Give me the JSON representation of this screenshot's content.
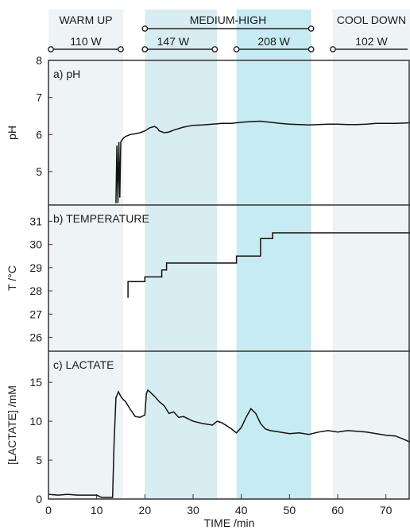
{
  "colors": {
    "warm_up": "#eef4f6",
    "medium_147": "#d8edf2",
    "medium_208": "#c7ebf3",
    "cool_down": "#eef4f6",
    "line": "#111111",
    "frame": "#333333"
  },
  "phases": {
    "warm_up": {
      "label": "WARM UP",
      "power": "110 W",
      "x": [
        0,
        15.5
      ]
    },
    "medium_high": {
      "label": "MEDIUM-HIGH",
      "x": [
        20,
        54.5
      ]
    },
    "p147": {
      "power": "147 W",
      "x": [
        20,
        35
      ]
    },
    "p208": {
      "power": "208 W",
      "x": [
        39,
        54.5
      ]
    },
    "cool_down": {
      "label": "COOL DOWN",
      "power": "102 W",
      "x": [
        59,
        75
      ]
    }
  },
  "chart_data": [
    {
      "type": "line",
      "panel": "a) pH",
      "ylabel": "pH",
      "xlim": [
        0,
        75
      ],
      "ylim": [
        4.1,
        8
      ],
      "yticks": [
        "8",
        "7",
        "6",
        "5"
      ],
      "series": [
        {
          "x": [
            14.0,
            14.2,
            14.4,
            14.6,
            14.8,
            15.0,
            15.5,
            16,
            17,
            18,
            19,
            20,
            21,
            22,
            22.5,
            23,
            24,
            25,
            26,
            28,
            30,
            32,
            34,
            36,
            38,
            40,
            42,
            44,
            46,
            48,
            50,
            52,
            54,
            56,
            58,
            60,
            62,
            64,
            66,
            68,
            70,
            72,
            74,
            75
          ],
          "values": [
            4.15,
            5.7,
            4.15,
            5.8,
            4.3,
            5.8,
            5.9,
            5.95,
            6.0,
            6.02,
            6.05,
            6.1,
            6.18,
            6.22,
            6.18,
            6.1,
            6.05,
            6.07,
            6.12,
            6.2,
            6.25,
            6.26,
            6.28,
            6.3,
            6.3,
            6.33,
            6.35,
            6.36,
            6.33,
            6.3,
            6.28,
            6.27,
            6.26,
            6.27,
            6.28,
            6.28,
            6.27,
            6.27,
            6.28,
            6.3,
            6.3,
            6.3,
            6.31,
            6.32
          ]
        }
      ]
    },
    {
      "type": "line",
      "panel": "b) TEMPERATURE",
      "ylabel": "T /°C",
      "xlim": [
        0,
        75
      ],
      "ylim": [
        25.4,
        31.7
      ],
      "yticks": [
        "31",
        "30",
        "29",
        "28",
        "27",
        "26"
      ],
      "series": [
        {
          "x": [
            16.5,
            16.5,
            17,
            17,
            20,
            20,
            23.5,
            23.5,
            24.5,
            24.5,
            39,
            39,
            42.5,
            42.5,
            44,
            44,
            46.5,
            46.5,
            75
          ],
          "values": [
            27.7,
            28.4,
            28.4,
            28.4,
            28.4,
            28.6,
            28.6,
            28.9,
            28.9,
            29.2,
            29.2,
            29.5,
            29.5,
            29.5,
            29.5,
            30.25,
            30.25,
            30.5,
            30.5
          ]
        }
      ]
    },
    {
      "type": "line",
      "panel": "c) LACTATE",
      "ylabel": "[LACTATE] /mM",
      "xlabel": "TIME /min",
      "xlim": [
        0,
        75
      ],
      "ylim": [
        0,
        19
      ],
      "xticks": [
        "0",
        "10",
        "20",
        "30",
        "40",
        "50",
        "60",
        "70"
      ],
      "yticks": [
        "15",
        "10",
        "5",
        "0"
      ],
      "series": [
        {
          "x": [
            0,
            2,
            4,
            6,
            8,
            10,
            11,
            13.3,
            13.6,
            14.0,
            14.5,
            15,
            15.5,
            16,
            17,
            18,
            19,
            20,
            20.3,
            20.6,
            21,
            22,
            23,
            24,
            25,
            26,
            27,
            28,
            30,
            32,
            34,
            35,
            36,
            38,
            39,
            40,
            41,
            42,
            43,
            44,
            45,
            46,
            48,
            50,
            52,
            54,
            56,
            58,
            60,
            62,
            64,
            66,
            68,
            70,
            72,
            74,
            75
          ],
          "values": [
            0.6,
            0.5,
            0.6,
            0.5,
            0.5,
            0.5,
            0.2,
            0.2,
            7.0,
            13.0,
            13.8,
            13.2,
            12.8,
            12.5,
            11.5,
            10.6,
            10.5,
            10.8,
            13.5,
            14.0,
            13.8,
            13.2,
            12.5,
            12.0,
            11.0,
            11.2,
            10.5,
            10.6,
            10.0,
            9.7,
            9.5,
            10.0,
            9.8,
            9.0,
            8.5,
            9.2,
            10.5,
            11.6,
            11.0,
            9.7,
            9.0,
            8.8,
            8.6,
            8.4,
            8.5,
            8.3,
            8.6,
            8.8,
            8.6,
            8.8,
            8.7,
            8.6,
            8.4,
            8.2,
            8.1,
            7.6,
            7.3
          ]
        }
      ]
    }
  ]
}
